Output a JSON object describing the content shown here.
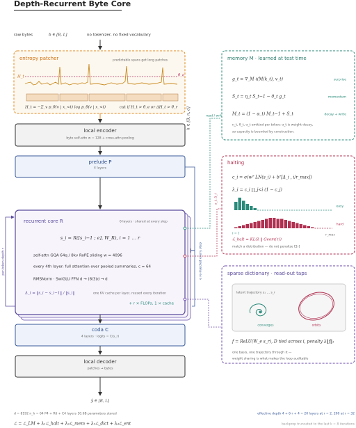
{
  "title": "Depth-Recurrent Byte Core",
  "input": {
    "label": "raw bytes",
    "shape": "b ∈ [B, L]",
    "note": "no tokenizer, no fixed vocabulary"
  },
  "patcher": {
    "title": "entropy patcher",
    "note": "predictable spans get long patches",
    "h_label": "H_t",
    "theta_label": "θ_e",
    "formula": "H_t = −Σ_v p_θ(v | x_<t) log p_θ(v | x_<t)",
    "rule": "cut if H_t > θ_e  or  ΔH_t > θ_r"
  },
  "hidden_shape": "h ∈ [B, n, d]",
  "encoder": {
    "title": "local encoder",
    "sub": "byte self-attn  w = 128  +  cross-attn pooling"
  },
  "prelude": {
    "title": "prelude P",
    "sub": "4 layers"
  },
  "core": {
    "title": "recurrent core R",
    "layers": "6 layers · shared at every step",
    "formula": "s_i = R([s_i−1 ; e], W_R),     i = 1 … r",
    "lines": [
      "self-attn  GQA 64q / 8kv  RoPE  sliding w = 4096",
      "every 4th layer: full attention over pooled summaries, c = 64",
      "RMSNorm · SwiGLU FFN   d → (8/3)d → d"
    ],
    "delta": "Δ_i = ‖s_i − s_i−1‖ / ‖s_i‖",
    "cache": "one KV cache per layer, reused every iteration",
    "cost": "+ r × FLOPs, 1 × cache"
  },
  "loop_label": "per-token depth r",
  "reinject_label": "e re-injected every step",
  "coda": {
    "title": "coda C",
    "sub": "4 layers · logits = C(s_r)"
  },
  "decoder": {
    "title": "local decoder",
    "sub": "patches → bytes"
  },
  "output": "ŷ ∈ [B, L]",
  "footer": {
    "config": "d = 8192    n_h = 64    P4 + R6 + C4 layers    10.6B parameters stored",
    "depth": "effective depth 4 + 6·r + 4  =  20 layers at r = 2,  200 at r = 32",
    "loss": "ℒ = ℒ_LM + λ₁ℒ_halt + λ₂ℒ_mem + λ₃ℒ_dict + λ₄ℒ_ent",
    "backprop": "backprop truncated to the last k = 8 iterations"
  },
  "rw_label": "read / write",
  "memory": {
    "title": "memory M  ·  learned at test time",
    "equations": [
      {
        "formula": "g_t = ∇_M ℓ(M(k_t), v_t)",
        "tag": "surprise"
      },
      {
        "formula": "S_t = η_t S_t−1 − θ_t g_t",
        "tag": "momentum"
      },
      {
        "formula": "M_t = (1 − α_t) M_t−1 + S_t",
        "tag": "decay + write"
      }
    ],
    "note": [
      "η_t, θ_t, α_t emitted per token; α_t is weight decay,",
      "so capacity is bounded by construction."
    ]
  },
  "halt_input": "s_i, Δ_i",
  "halting": {
    "title": "halting",
    "gate": "c_i = σ(wᵀ LN(s_i) + bᵀ[Δ_i , i/r_max])",
    "prob": "λ_i = c_i ∏_j<i (1 − c_j)",
    "easy": {
      "label": "easy",
      "values": [
        8,
        12,
        9,
        6,
        4,
        2
      ]
    },
    "hard": {
      "label": "hard",
      "values": [
        1,
        2,
        3,
        4,
        5,
        6,
        7,
        8,
        9,
        10,
        10,
        9,
        9,
        8,
        7,
        6,
        5,
        4,
        3,
        2,
        1
      ]
    },
    "axis_start": "i = 1",
    "axis_end": "r_max",
    "loss": "ℒ_halt = KL(λ ‖ Geom(τ))",
    "note": "match a distribution — do not penalize E[r]"
  },
  "dictionary": {
    "title": "sparse dictionary  ·  read-out taps",
    "trajectory": "latent trajectory s₁ … s_r",
    "converges": "converges",
    "orbits": "orbits",
    "formula": "f = ReLU(W_e s_r),   D tied across i,   penalty λ‖f‖₁",
    "note": [
      "one basis, one trajectory through it —",
      "weight sharing is what makes the loop auditable"
    ]
  }
}
